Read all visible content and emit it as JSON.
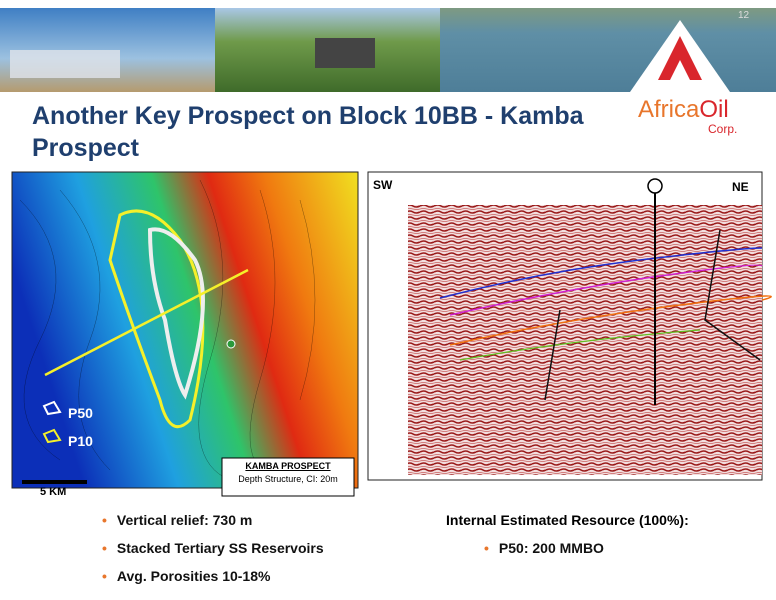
{
  "slide": {
    "page_number": "12",
    "title": "Another Key Prospect on Block 10BB - Kamba Prospect",
    "logo": {
      "name_part1": "Africa",
      "name_part2": "Oil",
      "subtitle": "Corp."
    },
    "map": {
      "legend": [
        "P50",
        "P10"
      ],
      "caption_title": "KAMBA PROSPECT",
      "caption_subtitle": "Depth Structure, CI: 20m",
      "scale": "5 KM"
    },
    "seismic": {
      "left_label": "SW",
      "right_label": "NE"
    },
    "bullets_left": [
      "Vertical relief: 730 m",
      "Stacked Tertiary SS Reservoirs",
      "Avg. Porosities 10-18%"
    ],
    "resource": {
      "heading": "Internal Estimated Resource (100%):",
      "bullets": [
        "P50: 200 MMBO"
      ]
    }
  }
}
